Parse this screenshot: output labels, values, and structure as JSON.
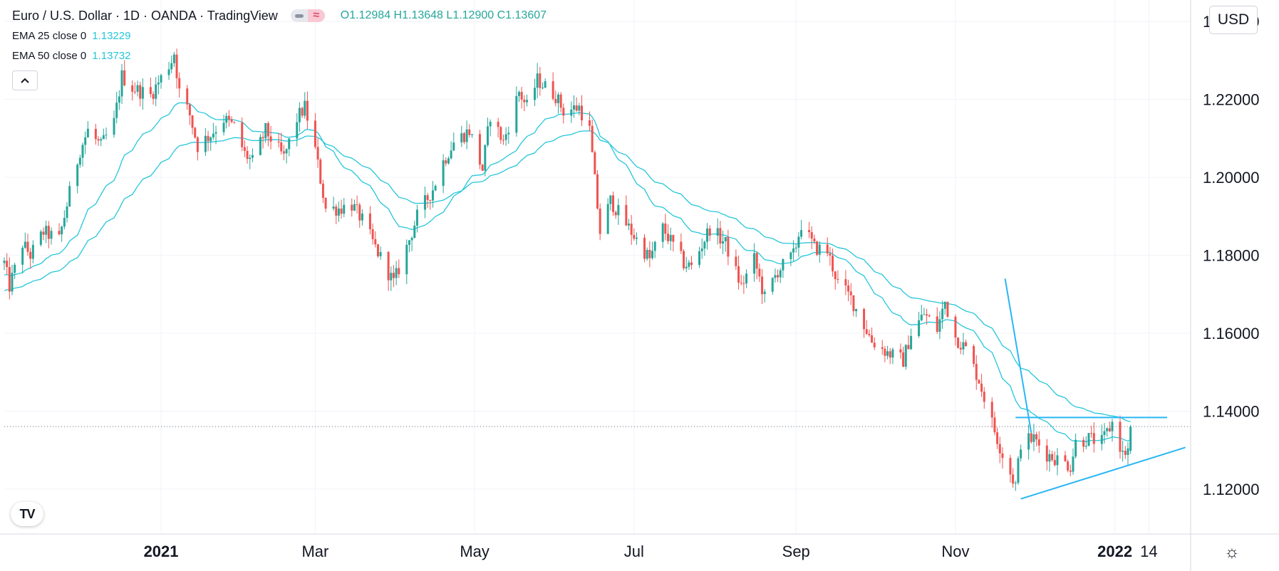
{
  "legend": {
    "symbol": "Euro / U.S. Dollar · 1D · OANDA · TradingView",
    "ohlc": {
      "o_label": "O",
      "o": "1.12984",
      "h_label": "H",
      "h": "1.13648",
      "l_label": "L",
      "l": "1.12900",
      "c_label": "C",
      "c": "1.13607"
    },
    "ema25": {
      "label": "EMA 25 close 0",
      "value": "1.13229"
    },
    "ema50": {
      "label": "EMA 50 close 0",
      "value": "1.13732"
    },
    "collapse_icon": "chevron-up-icon"
  },
  "currency_button": "USD",
  "logo_text": "TV",
  "settings_icon": "gear-icon",
  "colors": {
    "up": "#26a69a",
    "down": "#ef5350",
    "ema": "#26c6da",
    "trendline": "#29b6f6",
    "price_line": "#607080"
  },
  "chart_data": {
    "type": "candlestick",
    "title": "Euro / U.S. Dollar · 1D · OANDA · TradingView",
    "ylim": [
      1.1085,
      1.2455
    ],
    "y_ticks": [
      "1.24000",
      "1.22000",
      "1.20000",
      "1.18000",
      "1.16000",
      "1.14000",
      "1.12000"
    ],
    "x_ticks": [
      {
        "label": "2021",
        "date": "2021-01-01",
        "bold": true
      },
      {
        "label": "Mar",
        "date": "2021-03-01",
        "bold": false
      },
      {
        "label": "May",
        "date": "2021-05-01",
        "bold": false
      },
      {
        "label": "Jul",
        "date": "2021-07-01",
        "bold": false
      },
      {
        "label": "Sep",
        "date": "2021-09-01",
        "bold": false
      },
      {
        "label": "Nov",
        "date": "2021-11-01",
        "bold": false
      },
      {
        "label": "2022",
        "date": "2022-01-01",
        "bold": true
      },
      {
        "label": "14",
        "date": "2022-01-14",
        "bold": false
      }
    ],
    "x_range": [
      "2020-11-02",
      "2022-01-30"
    ],
    "last_price": 1.13607,
    "waypoints": [
      [
        "2020-11-02",
        1.178
      ],
      [
        "2020-11-04",
        1.172
      ],
      [
        "2020-11-09",
        1.183
      ],
      [
        "2020-11-12",
        1.18
      ],
      [
        "2020-11-17",
        1.186
      ],
      [
        "2020-11-23",
        1.184
      ],
      [
        "2020-11-27",
        1.196
      ],
      [
        "2020-12-01",
        1.207
      ],
      [
        "2020-12-04",
        1.212
      ],
      [
        "2020-12-09",
        1.208
      ],
      [
        "2020-12-14",
        1.214
      ],
      [
        "2020-12-17",
        1.226
      ],
      [
        "2020-12-21",
        1.223
      ],
      [
        "2020-12-28",
        1.221
      ],
      [
        "2021-01-05",
        1.23
      ],
      [
        "2021-01-06",
        1.232
      ],
      [
        "2021-01-08",
        1.222
      ],
      [
        "2021-01-12",
        1.216
      ],
      [
        "2021-01-15",
        1.208
      ],
      [
        "2021-01-20",
        1.211
      ],
      [
        "2021-01-25",
        1.215
      ],
      [
        "2021-01-29",
        1.213
      ],
      [
        "2021-02-02",
        1.206
      ],
      [
        "2021-02-05",
        1.204
      ],
      [
        "2021-02-10",
        1.212
      ],
      [
        "2021-02-17",
        1.205
      ],
      [
        "2021-02-22",
        1.215
      ],
      [
        "2021-02-25",
        1.218
      ],
      [
        "2021-03-01",
        1.207
      ],
      [
        "2021-03-05",
        1.192
      ],
      [
        "2021-03-10",
        1.192
      ],
      [
        "2021-03-15",
        1.193
      ],
      [
        "2021-03-19",
        1.189
      ],
      [
        "2021-03-24",
        1.182
      ],
      [
        "2021-03-31",
        1.173
      ],
      [
        "2021-04-05",
        1.182
      ],
      [
        "2021-04-09",
        1.19
      ],
      [
        "2021-04-15",
        1.197
      ],
      [
        "2021-04-19",
        1.204
      ],
      [
        "2021-04-23",
        1.209
      ],
      [
        "2021-04-29",
        1.212
      ],
      [
        "2021-05-04",
        1.202
      ],
      [
        "2021-05-07",
        1.216
      ],
      [
        "2021-05-12",
        1.209
      ],
      [
        "2021-05-18",
        1.222
      ],
      [
        "2021-05-21",
        1.218
      ],
      [
        "2021-05-25",
        1.225
      ],
      [
        "2021-06-01",
        1.221
      ],
      [
        "2021-06-04",
        1.217
      ],
      [
        "2021-06-10",
        1.218
      ],
      [
        "2021-06-14",
        1.212
      ],
      [
        "2021-06-18",
        1.186
      ],
      [
        "2021-06-22",
        1.194
      ],
      [
        "2021-06-30",
        1.186
      ],
      [
        "2021-07-07",
        1.179
      ],
      [
        "2021-07-12",
        1.187
      ],
      [
        "2021-07-20",
        1.178
      ],
      [
        "2021-07-23",
        1.177
      ],
      [
        "2021-07-30",
        1.187
      ],
      [
        "2021-08-05",
        1.183
      ],
      [
        "2021-08-11",
        1.172
      ],
      [
        "2021-08-16",
        1.179
      ],
      [
        "2021-08-20",
        1.169
      ],
      [
        "2021-08-25",
        1.176
      ],
      [
        "2021-08-31",
        1.18
      ],
      [
        "2021-09-03",
        1.188
      ],
      [
        "2021-09-08",
        1.182
      ],
      [
        "2021-09-13",
        1.181
      ],
      [
        "2021-09-17",
        1.173
      ],
      [
        "2021-09-22",
        1.169
      ],
      [
        "2021-09-30",
        1.158
      ],
      [
        "2021-10-06",
        1.155
      ],
      [
        "2021-10-12",
        1.153
      ],
      [
        "2021-10-15",
        1.16
      ],
      [
        "2021-10-20",
        1.165
      ],
      [
        "2021-10-25",
        1.161
      ],
      [
        "2021-10-28",
        1.168
      ],
      [
        "2021-11-01",
        1.159
      ],
      [
        "2021-11-05",
        1.156
      ],
      [
        "2021-11-10",
        1.148
      ],
      [
        "2021-11-15",
        1.137
      ],
      [
        "2021-11-19",
        1.129
      ],
      [
        "2021-11-24",
        1.121
      ],
      [
        "2021-11-26",
        1.132
      ],
      [
        "2021-12-01",
        1.133
      ],
      [
        "2021-12-06",
        1.129
      ],
      [
        "2021-12-09",
        1.128
      ],
      [
        "2021-12-15",
        1.126
      ],
      [
        "2021-12-17",
        1.132
      ],
      [
        "2021-12-22",
        1.133
      ],
      [
        "2021-12-27",
        1.132
      ],
      [
        "2021-12-31",
        1.137
      ],
      [
        "2022-01-04",
        1.129
      ],
      [
        "2022-01-06",
        1.13
      ],
      [
        "2022-01-07",
        1.1361
      ]
    ],
    "ema_series": [
      {
        "name": "EMA 25 close 0",
        "last": 1.13229
      },
      {
        "name": "EMA 50 close 0",
        "last": 1.13732
      }
    ],
    "drawings": [
      {
        "kind": "resistance-line",
        "from": [
          "2021-11-24",
          1.1384
        ],
        "to": [
          "2022-01-21",
          1.1384
        ]
      },
      {
        "kind": "rising-trendline",
        "from": [
          "2021-11-26",
          1.1175
        ],
        "to": [
          "2022-01-28",
          1.1307
        ]
      },
      {
        "kind": "steep-trendline",
        "from": [
          "2021-11-20",
          1.174
        ],
        "to": [
          "2021-11-30",
          1.1345
        ]
      }
    ]
  }
}
